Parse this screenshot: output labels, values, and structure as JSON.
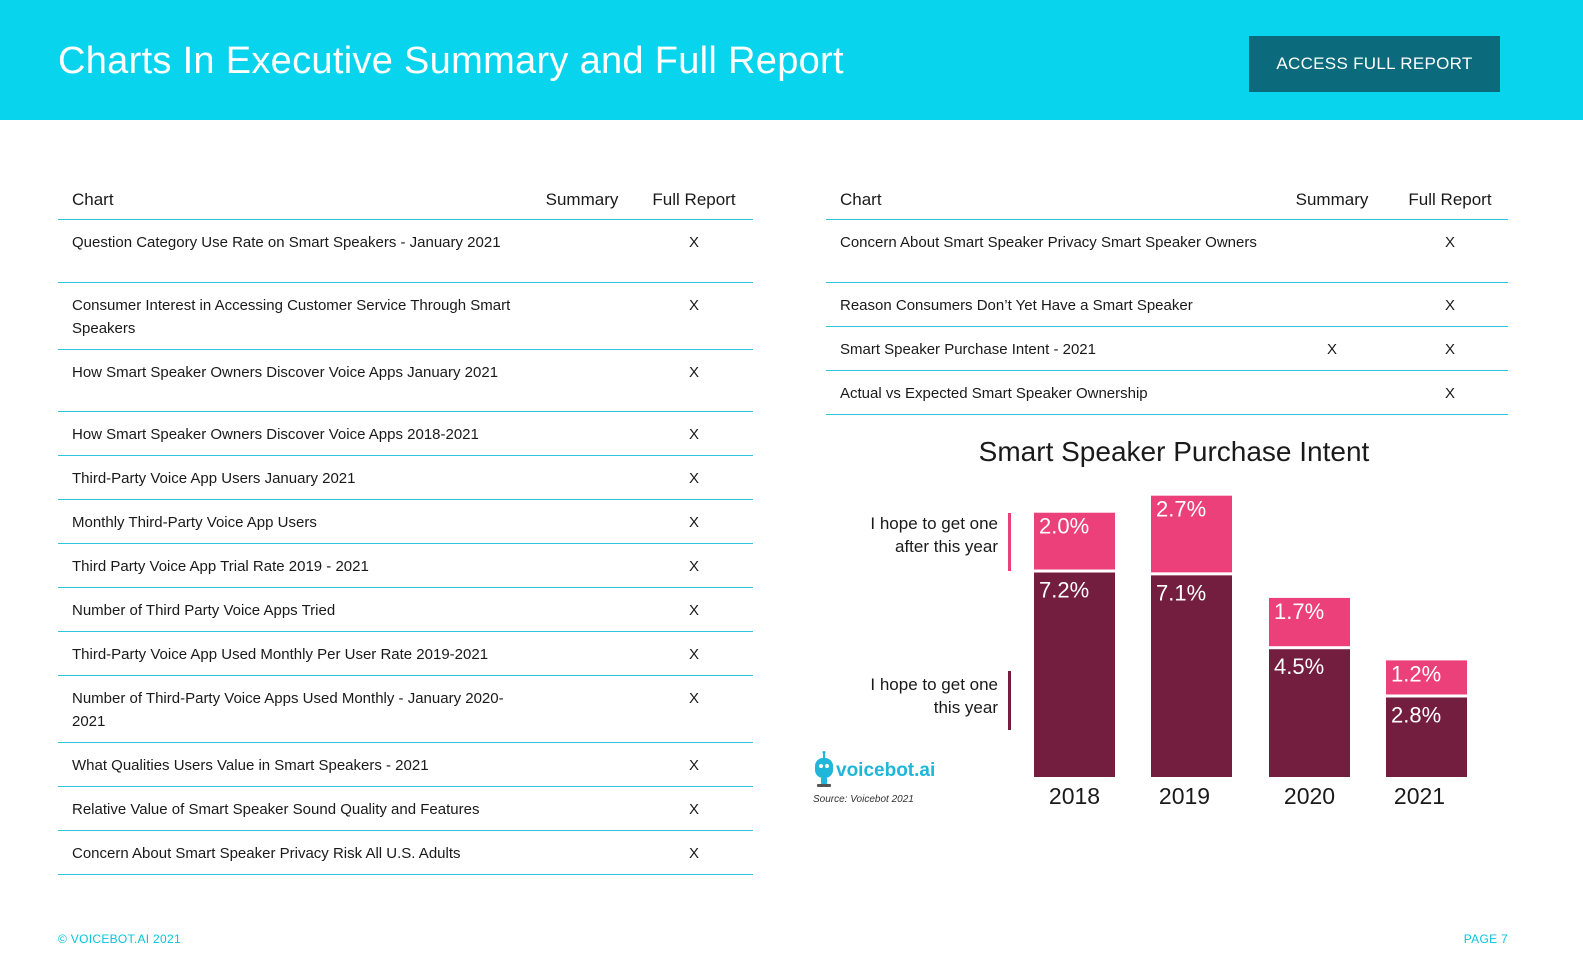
{
  "header": {
    "title": "Charts In Executive Summary and Full Report",
    "button_label": "ACCESS FULL REPORT"
  },
  "colors": {
    "header_bg": "#08d4ed",
    "button_bg": "#0b6b7c",
    "rule": "#2cc6dc",
    "bar_pink": "#ec407a",
    "bar_maroon": "#741e3f"
  },
  "table_left": {
    "headers": {
      "chart": "Chart",
      "summary": "Summary",
      "full": "Full Report"
    },
    "rows": [
      {
        "chart": "Question Category Use Rate on Smart Speakers - January 2021",
        "summary": "",
        "full": "X"
      },
      {
        "chart": "Consumer Interest in Accessing Customer Service Through Smart Speakers",
        "summary": "",
        "full": "X"
      },
      {
        "chart": "How Smart Speaker Owners Discover Voice Apps January 2021",
        "summary": "",
        "full": "X"
      },
      {
        "chart": "How Smart Speaker Owners Discover Voice Apps 2018-2021",
        "summary": "",
        "full": "X"
      },
      {
        "chart": "Third-Party Voice App Users January 2021",
        "summary": "",
        "full": "X"
      },
      {
        "chart": "Monthly Third-Party Voice App Users",
        "summary": "",
        "full": "X"
      },
      {
        "chart": "Third Party Voice App Trial Rate 2019 - 2021",
        "summary": "",
        "full": "X"
      },
      {
        "chart": "Number of Third Party Voice Apps Tried",
        "summary": "",
        "full": "X"
      },
      {
        "chart": "Third-Party Voice App Used Monthly Per User Rate 2019-2021",
        "summary": "",
        "full": "X"
      },
      {
        "chart": "Number of Third-Party Voice Apps Used Monthly - January 2020-2021",
        "summary": "",
        "full": "X"
      },
      {
        "chart": "What Qualities Users Value in Smart Speakers - 2021",
        "summary": "",
        "full": "X"
      },
      {
        "chart": "Relative Value of Smart Speaker Sound Quality and  Features",
        "summary": "",
        "full": "X"
      },
      {
        "chart": "Concern About Smart Speaker Privacy Risk All U.S. Adults",
        "summary": "",
        "full": "X"
      }
    ]
  },
  "table_right": {
    "headers": {
      "chart": "Chart",
      "summary": "Summary",
      "full": "Full Report"
    },
    "rows": [
      {
        "chart": "Concern About Smart Speaker Privacy Smart Speaker Owners",
        "summary": "",
        "full": "X"
      },
      {
        "chart": "Reason Consumers Don’t Yet Have a Smart Speaker",
        "summary": "",
        "full": "X"
      },
      {
        "chart": "Smart Speaker Purchase Intent - 2021",
        "summary": "X",
        "full": "X"
      },
      {
        "chart": "Actual vs Expected Smart Speaker Ownership",
        "summary": "",
        "full": "X"
      }
    ]
  },
  "chart_data": {
    "type": "bar",
    "stacked": true,
    "title": "Smart Speaker Purchase Intent",
    "categories": [
      "2018",
      "2019",
      "2020",
      "2021"
    ],
    "series": [
      {
        "name": "I hope to get one this year",
        "values": [
          7.2,
          7.1,
          4.5,
          2.8
        ],
        "labels": [
          "7.2%",
          "7.1%",
          "4.5%",
          "2.8%"
        ],
        "color": "#741e3f"
      },
      {
        "name": "I hope to get one after this year",
        "values": [
          2.0,
          2.7,
          1.7,
          1.2
        ],
        "labels": [
          "2.0%",
          "2.7%",
          "1.7%",
          "1.2%"
        ],
        "color": "#ec407a"
      }
    ],
    "legend_after": [
      "I hope to get one",
      "after this year"
    ],
    "legend_this": [
      "I hope to get one",
      "this year"
    ],
    "xlabel": "",
    "ylabel": "",
    "legend": "left",
    "grid": false
  },
  "logo": {
    "text": "voicebot.ai"
  },
  "source": "Source: Voicebot 2021",
  "footer": {
    "left": "© VOICEBOT.AI 2021",
    "right": "PAGE 7"
  }
}
